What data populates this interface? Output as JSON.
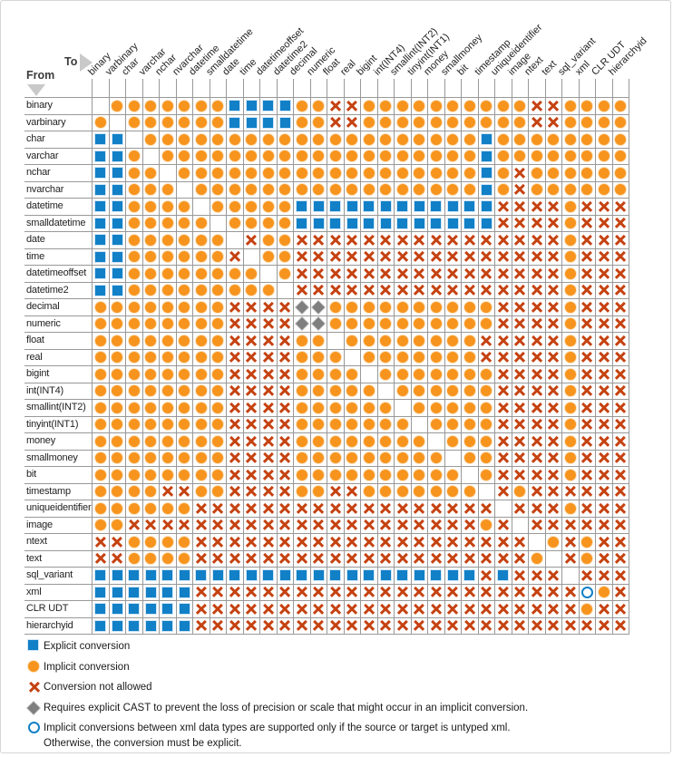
{
  "corner": {
    "from_label": "From",
    "to_label": "To"
  },
  "types": [
    "binary",
    "varbinary",
    "char",
    "varchar",
    "nchar",
    "nvarchar",
    "datetime",
    "smalldatetime",
    "date",
    "time",
    "datetimeoffset",
    "datetime2",
    "decimal",
    "numeric",
    "float",
    "real",
    "bigint",
    "int(INT4)",
    "smallint(INT2)",
    "tinyint(INT1)",
    "money",
    "smallmoney",
    "bit",
    "timestamp",
    "uniqueidentifier",
    "image",
    "ntext",
    "text",
    "sql_variant",
    "xml",
    "CLR UDT",
    "hierarchyid"
  ],
  "mark_meanings": {
    "E": "explicit-conversion-square",
    "I": "implicit-conversion-circle",
    "X": "conversion-not-allowed-x",
    "D": "requires-explicit-cast-diamond",
    "U": "untyped-xml-hollow-circle",
    ".": "same-type-blank"
  },
  "chart_data": {
    "type": "heatmap",
    "rows_axis": "From",
    "cols_axis": "To",
    "categories": [
      "binary",
      "varbinary",
      "char",
      "varchar",
      "nchar",
      "nvarchar",
      "datetime",
      "smalldatetime",
      "date",
      "time",
      "datetimeoffset",
      "datetime2",
      "decimal",
      "numeric",
      "float",
      "real",
      "bigint",
      "int(INT4)",
      "smallint(INT2)",
      "tinyint(INT1)",
      "money",
      "smallmoney",
      "bit",
      "timestamp",
      "uniqueidentifier",
      "image",
      "ntext",
      "text",
      "sql_variant",
      "xml",
      "CLR UDT",
      "hierarchyid"
    ],
    "matrix_rows": [
      ".IIIIIIIEEEEIIXXIIIIIIIIIIXXIIII",
      "I.IIIIIIEEEEIIXXIIIIIIIIIIXXIIII",
      "EE.IIIIIIIIIIIIIIIIIIIIEIIIIIIII",
      "EEI.IIIIIIIIIIIIIIIIIIIEIIIIIIII",
      "EEII.IIIIIIIIIIIIIIIIIIEIXIIIIII",
      "EEIII.IIIIIIIIIIIIIIIIIEIXIIIIII",
      "EEIIII.IIIIIEEEEEEEEEEEEXXXXIXXX",
      "EEIIIII.IIIIEEEEEEEEEEEEXXXXIXXX",
      "EEIIIIII.XIIXXXXXXXXXXXXXXXXIXXX",
      "EEIIIIIIX.IIXXXXXXXXXXXXXXXXIXXX",
      "EEIIIIIIII.IXXXXXXXXXXXXXXXXIXXX",
      "EEIIIIIIIII.XXXXXXXXXXXXXXXXIXXX",
      "IIIIIIIIXXXXDDIIIIIIIIIIXXXXIXXX",
      "IIIIIIIIXXXXDDIIIIIIIIIIXXXXIXXX",
      "IIIIIIIIXXXXII.IIIIIIIIXXXXXIXXX",
      "IIIIIIIIXXXXIII.IIIIIIIXXXXXIXXX",
      "IIIIIIIIXXXXIIII.IIIIIIIXXXXIXXX",
      "IIIIIIIIXXXXIIIII.IIIIIIXXXXIXXX",
      "IIIIIIIIXXXXIIIIII.IIIIIXXXXIXXX",
      "IIIIIIIIXXXXIIIIIII.IIIIXXXXIXXX",
      "IIIIIIIIXXXXIIIIIIII.IIIXXXXIXXX",
      "IIIIIIIIXXXXIIIIIIIII.IIXXXXIXXX",
      "IIIIIIIIXXXXIIIIIIIIII.IXXXXIXXX",
      "IIIIXXIIXXXXIIXXIIIIIII.XIXXXXXX",
      "IIIIIIXXXXXXXXXXXXXXXXXX.XXXIXXX",
      "IIXXXXXXXXXXXXXXXXXXXXXIX.XXXXXX",
      "XXIIIIXXXXXXXXXXXXXXXXXXXX.IXIXX",
      "XXIIIIXXXXXXXXXXXXXXXXXXXXI.XIXX",
      "EEEEEEEEEEEEEEEEEEEEEEEXEXXX.XXX",
      "EEEEEEXXXXXXXXXXXXXXXXXXXXXXXUIX",
      "EEEEEEXXXXXXXXXXXXXXXXXXXXXXXIXX",
      "EEEEEEXXXXXXXXXXXXXXXXXXXXXXXXXX"
    ]
  },
  "legend": {
    "items": [
      {
        "mark": "E",
        "label": "Explicit conversion"
      },
      {
        "mark": "I",
        "label": "Implicit conversion"
      },
      {
        "mark": "X",
        "label": "Conversion not allowed"
      },
      {
        "mark": "D",
        "label": "Requires explicit CAST to prevent the loss of precision or scale that might occur in an implicit conversion."
      },
      {
        "mark": "U",
        "label": "Implicit conversions between xml data types are supported only if the source or target is untyped xml.\nOtherwise, the conversion must be explicit."
      }
    ]
  },
  "colors": {
    "explicit_blue": "#1180C7",
    "implicit_orange": "#F7941E",
    "not_allowed_red": "#C54211",
    "cast_diamond_gray": "#7F7F7F",
    "gridline_gray": "#999999"
  }
}
